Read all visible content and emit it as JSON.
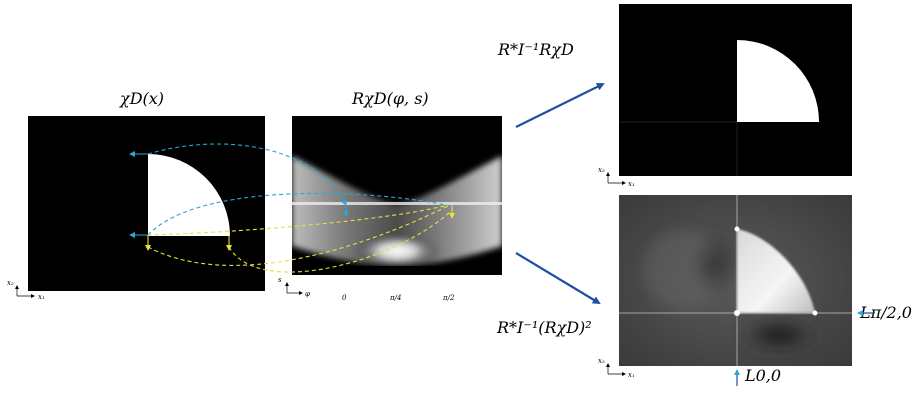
{
  "labels": {
    "chi_d": "χD(x)",
    "radon": "RχD(φ, s)",
    "top_right": "R*I⁻¹RχD",
    "bottom_right": "R*I⁻¹(RχD)²",
    "l_pi2": "Lπ/2,0",
    "l_00": "L0,0"
  },
  "axes": {
    "x1": "x₁",
    "x2": "x₂",
    "s": "s",
    "phi": "φ",
    "tick_0": "0",
    "tick_pi4": "π/4",
    "tick_pi2": "π/2"
  },
  "colors": {
    "blue_arrow": "#1f4fa0",
    "cyan_dash": "#2aa6d8",
    "yellow_dash": "#e8e040"
  }
}
